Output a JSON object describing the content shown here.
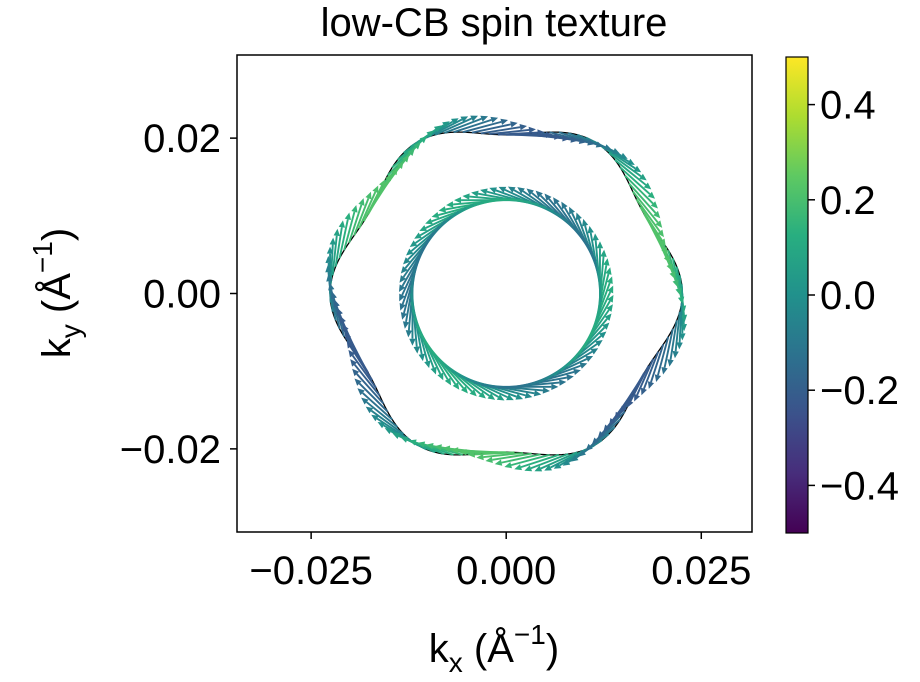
{
  "chart_data": {
    "type": "quiver",
    "title": "low-CB spin texture",
    "xlabel": {
      "base": "k",
      "sub": "x",
      "unit": "(Å",
      "sup": "−1",
      "close": ")"
    },
    "ylabel": {
      "base": "k",
      "sub": "y",
      "unit": "(Å",
      "sup": "−1",
      "close": ")"
    },
    "xlim": [
      -0.0345,
      0.0315
    ],
    "ylim": [
      -0.0307,
      0.0307
    ],
    "xticks": [
      {
        "value": -0.025,
        "label": "−0.025"
      },
      {
        "value": 0.0,
        "label": "0.000"
      },
      {
        "value": 0.025,
        "label": "0.025"
      }
    ],
    "yticks": [
      {
        "value": -0.02,
        "label": "−0.02"
      },
      {
        "value": 0.0,
        "label": "0.00"
      },
      {
        "value": 0.02,
        "label": "0.02"
      }
    ],
    "grid": false,
    "colormap": "viridis",
    "colorbar": {
      "range": [
        -0.5,
        0.5
      ],
      "ticks": [
        {
          "value": 0.4,
          "label": "0.4"
        },
        {
          "value": 0.2,
          "label": "0.2"
        },
        {
          "value": 0.0,
          "label": "0.0"
        },
        {
          "value": -0.2,
          "label": "−0.2"
        },
        {
          "value": -0.4,
          "label": "−0.4"
        }
      ]
    },
    "fermi_contours": [
      {
        "name": "inner",
        "radius": 0.0122,
        "warping": 0.0
      },
      {
        "name": "outer",
        "radius": 0.0215,
        "warping": 0.05
      }
    ],
    "spin_textures": [
      {
        "contour": "inner",
        "count": 72,
        "arrow_length": 0.0088,
        "rotation_deg": 100,
        "sz_amplitude": 0.12,
        "sz_phase_deg": 180
      },
      {
        "contour": "outer",
        "count": 120,
        "arrow_length": 0.006,
        "rotation_deg": -90,
        "sz_amplitude": 0.22,
        "sz_phase_deg": 0
      }
    ]
  }
}
